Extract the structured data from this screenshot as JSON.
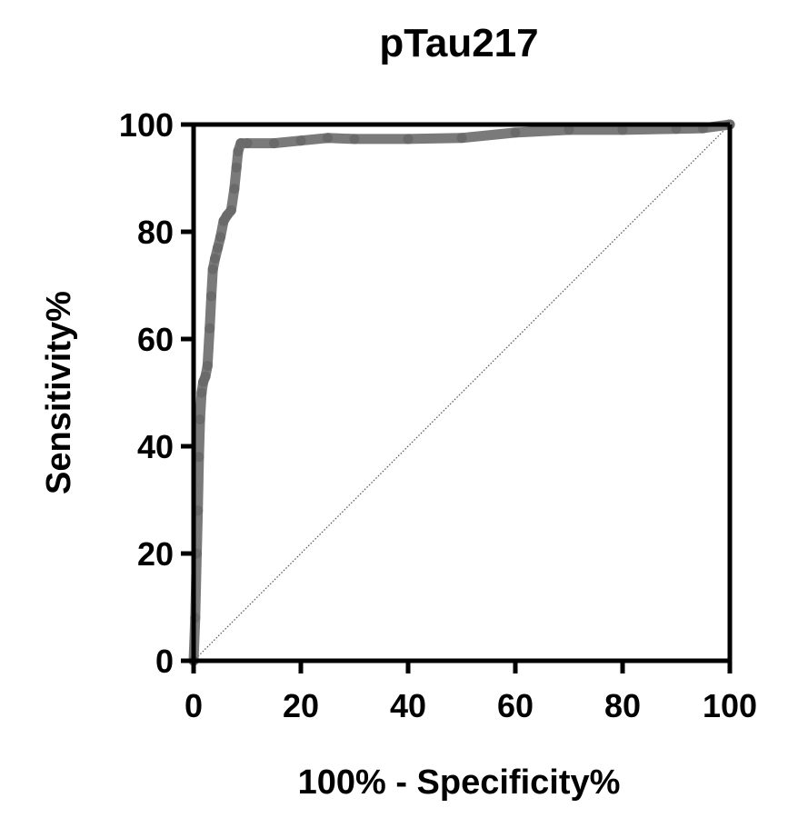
{
  "chart_data": {
    "type": "line",
    "title": "pTau217",
    "xlabel": "100% - Specificity%",
    "ylabel": "Sensitivity%",
    "xlim": [
      0,
      100
    ],
    "ylim": [
      0,
      100
    ],
    "x_ticks": [
      "0",
      "20",
      "40",
      "60",
      "80",
      "100"
    ],
    "y_ticks": [
      "0",
      "20",
      "40",
      "60",
      "80",
      "100"
    ],
    "grid": false,
    "legend": "none",
    "series": [
      {
        "x": [
          0,
          0.3,
          0.6,
          0.8,
          1.0,
          1.2,
          1.5,
          1.8,
          2.2,
          2.6,
          3.0,
          3.3,
          3.6,
          4.0,
          4.5,
          5.0,
          5.6,
          6.2,
          7.0,
          7.6,
          8.0,
          8.3,
          8.8,
          10,
          15,
          20,
          25,
          30,
          40,
          50,
          60,
          70,
          80,
          90,
          95,
          100
        ],
        "y": [
          0,
          8,
          20,
          28,
          38,
          45,
          50,
          52,
          53,
          55,
          62,
          68,
          73,
          75,
          77,
          79,
          82,
          83,
          84,
          88,
          92,
          95,
          96.5,
          96.5,
          96.5,
          97,
          97.5,
          97.3,
          97.3,
          97.5,
          98.5,
          99,
          99,
          99.2,
          99.3,
          100
        ],
        "color": "#7a7a7a"
      },
      {
        "x": [
          0,
          100
        ],
        "y": [
          0,
          100
        ],
        "color": "#555555",
        "style": "dotted"
      }
    ]
  }
}
